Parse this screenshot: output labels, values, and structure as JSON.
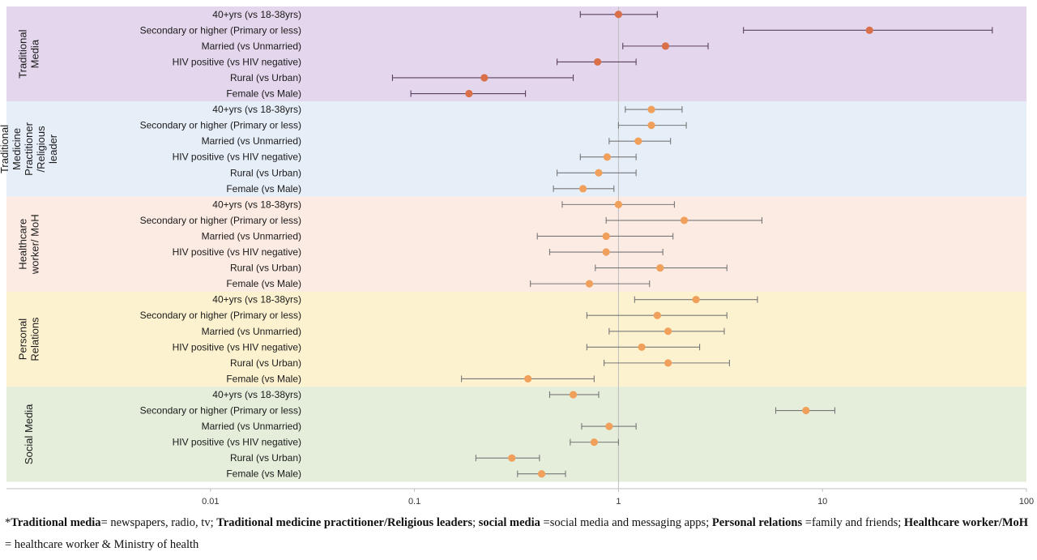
{
  "chart_data": {
    "type": "forest",
    "x_scale": "log",
    "xlim": [
      0.001,
      100
    ],
    "x_ticks": [
      "0.01",
      "0.1",
      "1",
      "10",
      "100"
    ],
    "x_tick_values": [
      0.01,
      0.1,
      1,
      10,
      100
    ],
    "reference_line": 1,
    "groups": [
      {
        "name": "Traditional Media",
        "label_lines": [
          "Traditional",
          "Media"
        ],
        "band_color": "#e4d6ec",
        "point_color": "#d9704a",
        "whisker_color": "#5a4060",
        "rows": [
          {
            "label": "40+yrs (vs 18-38yrs)",
            "or": 1.0,
            "low": 0.65,
            "high": 1.55
          },
          {
            "label": "Secondary or higher (Primary or less)",
            "or": 17.0,
            "low": 4.1,
            "high": 68.0
          },
          {
            "label": "Married (vs Unmarried)",
            "or": 1.7,
            "low": 1.05,
            "high": 2.75
          },
          {
            "label": "HIV positive (vs HIV negative)",
            "or": 0.79,
            "low": 0.5,
            "high": 1.22
          },
          {
            "label": "Rural (vs Urban)",
            "or": 0.22,
            "low": 0.078,
            "high": 0.6
          },
          {
            "label": "Female (vs Male)",
            "or": 0.185,
            "low": 0.096,
            "high": 0.35
          }
        ]
      },
      {
        "name": "Traditional Medicine Practitioner /Religious leader",
        "label_lines": [
          "Traditional",
          "Medicine",
          "Practitioner",
          "/Religious",
          "leader"
        ],
        "band_color": "#e6eef8",
        "point_color": "#f0a05a",
        "whisker_color": "#777777",
        "rows": [
          {
            "label": "40+yrs (vs 18-38yrs)",
            "or": 1.45,
            "low": 1.08,
            "high": 2.05
          },
          {
            "label": "Secondary or higher (Primary or less)",
            "or": 1.45,
            "low": 1.0,
            "high": 2.15
          },
          {
            "label": "Married (vs Unmarried)",
            "or": 1.25,
            "low": 0.9,
            "high": 1.8
          },
          {
            "label": "HIV positive (vs HIV negative)",
            "or": 0.88,
            "low": 0.65,
            "high": 1.22
          },
          {
            "label": "Rural (vs Urban)",
            "or": 0.8,
            "low": 0.5,
            "high": 1.22
          },
          {
            "label": "Female (vs Male)",
            "or": 0.67,
            "low": 0.48,
            "high": 0.95
          }
        ]
      },
      {
        "name": "Healthcare worker/ MoH",
        "label_lines": [
          "Healthcare",
          "worker/ MoH"
        ],
        "band_color": "#fcebe3",
        "point_color": "#f0a05a",
        "whisker_color": "#777777",
        "rows": [
          {
            "label": "40+yrs (vs 18-38yrs)",
            "or": 1.0,
            "low": 0.53,
            "high": 1.88
          },
          {
            "label": "Secondary or higher (Primary or less)",
            "or": 2.1,
            "low": 0.87,
            "high": 5.05
          },
          {
            "label": "Married (vs Unmarried)",
            "or": 0.87,
            "low": 0.4,
            "high": 1.85
          },
          {
            "label": "HIV positive (vs HIV negative)",
            "or": 0.87,
            "low": 0.46,
            "high": 1.65
          },
          {
            "label": "Rural (vs Urban)",
            "or": 1.6,
            "low": 0.77,
            "high": 3.4
          },
          {
            "label": "Female (vs Male)",
            "or": 0.72,
            "low": 0.37,
            "high": 1.42
          }
        ]
      },
      {
        "name": "Personal Relations",
        "label_lines": [
          "Personal",
          "Relations"
        ],
        "band_color": "#fdf2d0",
        "point_color": "#f0a05a",
        "whisker_color": "#777777",
        "rows": [
          {
            "label": "40+yrs (vs 18-38yrs)",
            "or": 2.4,
            "low": 1.2,
            "high": 4.8
          },
          {
            "label": "Secondary or higher (Primary or less)",
            "or": 1.55,
            "low": 0.7,
            "high": 3.4
          },
          {
            "label": "Married (vs Unmarried)",
            "or": 1.75,
            "low": 0.9,
            "high": 3.3
          },
          {
            "label": "HIV positive (vs HIV negative)",
            "or": 1.3,
            "low": 0.7,
            "high": 2.5
          },
          {
            "label": "Rural (vs Urban)",
            "or": 1.75,
            "low": 0.85,
            "high": 3.5
          },
          {
            "label": "Female (vs Male)",
            "or": 0.36,
            "low": 0.17,
            "high": 0.76
          }
        ]
      },
      {
        "name": "Social Media",
        "label_lines": [
          "Social Media"
        ],
        "band_color": "#e4eedb",
        "point_color": "#f0a05a",
        "whisker_color": "#777777",
        "rows": [
          {
            "label": "40+yrs (vs 18-38yrs)",
            "or": 0.6,
            "low": 0.46,
            "high": 0.8
          },
          {
            "label": "Secondary or higher (Primary or less)",
            "or": 8.3,
            "low": 5.9,
            "high": 11.5
          },
          {
            "label": "Married (vs Unmarried)",
            "or": 0.9,
            "low": 0.66,
            "high": 1.22
          },
          {
            "label": "HIV positive (vs HIV negative)",
            "or": 0.76,
            "low": 0.58,
            "high": 1.0
          },
          {
            "label": "Rural (vs Urban)",
            "or": 0.3,
            "low": 0.2,
            "high": 0.41
          },
          {
            "label": "Female (vs Male)",
            "or": 0.42,
            "low": 0.32,
            "high": 0.55
          }
        ]
      }
    ]
  },
  "footnote": [
    {
      "text": "*",
      "bold": false
    },
    {
      "text": "Traditional media",
      "bold": true
    },
    {
      "text": "= newspapers, radio, tv; ",
      "bold": false
    },
    {
      "text": "Traditional medicine practitioner/Religious leaders",
      "bold": true
    },
    {
      "text": "; ",
      "bold": false
    },
    {
      "text": "social media",
      "bold": true
    },
    {
      "text": " =social media and messaging apps; ",
      "bold": false
    },
    {
      "text": "Personal relations",
      "bold": true
    },
    {
      "text": " =family and friends; ",
      "bold": false
    },
    {
      "text": "Healthcare worker/MoH",
      "bold": true
    },
    {
      "text": " = healthcare worker & Ministry of health",
      "bold": false
    }
  ]
}
